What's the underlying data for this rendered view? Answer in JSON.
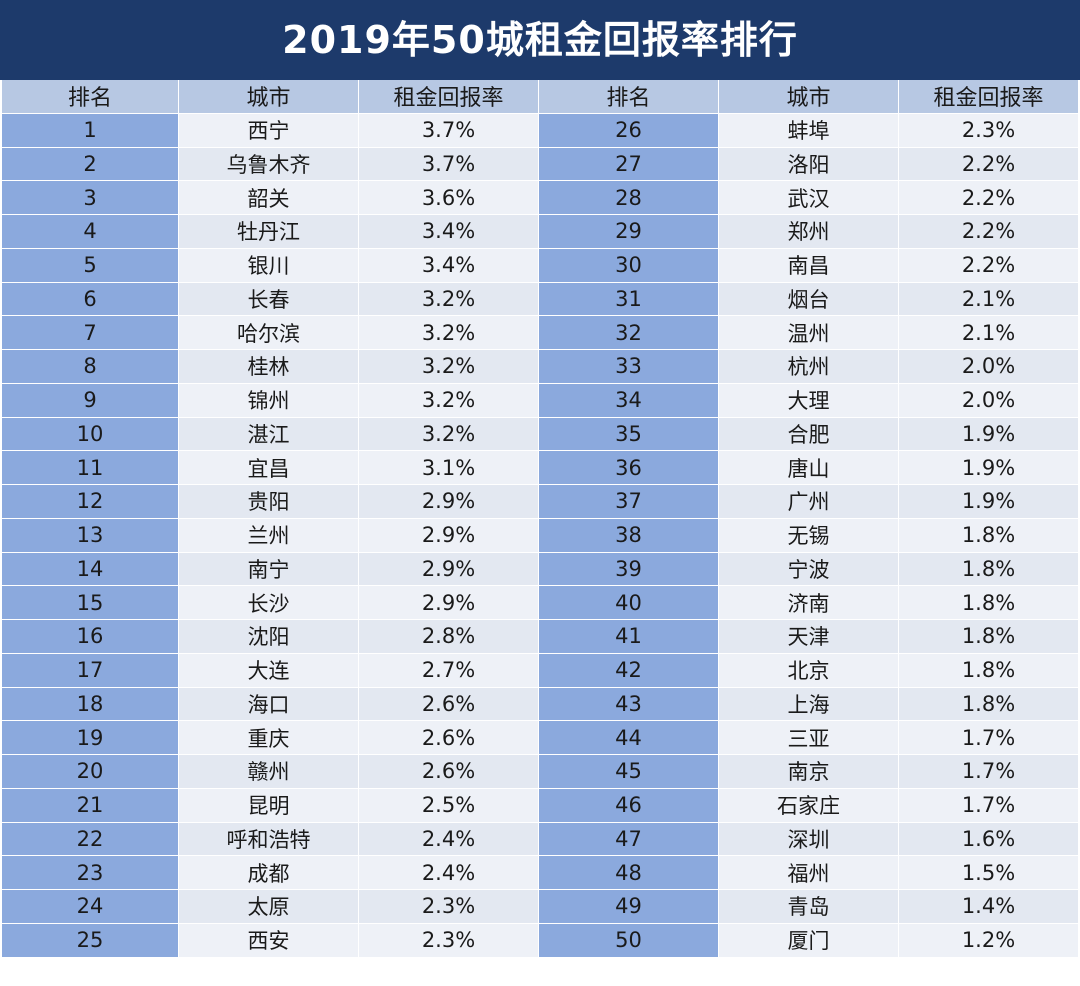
{
  "title": "2019年50城租金回报率排行",
  "headers": [
    "排名",
    "城市",
    "租金回报率",
    "排名",
    "城市",
    "租金回报率"
  ],
  "left_rows": [
    {
      "rank": "1",
      "city": "西宁",
      "rate": "3.7%"
    },
    {
      "rank": "2",
      "city": "乌鲁木齐",
      "rate": "3.7%"
    },
    {
      "rank": "3",
      "city": "韶关",
      "rate": "3.6%"
    },
    {
      "rank": "4",
      "city": "牡丹江",
      "rate": "3.4%"
    },
    {
      "rank": "5",
      "city": "银川",
      "rate": "3.4%"
    },
    {
      "rank": "6",
      "city": "长春",
      "rate": "3.2%"
    },
    {
      "rank": "7",
      "city": "哈尔滨",
      "rate": "3.2%"
    },
    {
      "rank": "8",
      "city": "桂林",
      "rate": "3.2%"
    },
    {
      "rank": "9",
      "city": "锦州",
      "rate": "3.2%"
    },
    {
      "rank": "10",
      "city": "湛江",
      "rate": "3.2%"
    },
    {
      "rank": "11",
      "city": "宜昌",
      "rate": "3.1%"
    },
    {
      "rank": "12",
      "city": "贵阳",
      "rate": "2.9%"
    },
    {
      "rank": "13",
      "city": "兰州",
      "rate": "2.9%"
    },
    {
      "rank": "14",
      "city": "南宁",
      "rate": "2.9%"
    },
    {
      "rank": "15",
      "city": "长沙",
      "rate": "2.9%"
    },
    {
      "rank": "16",
      "city": "沈阳",
      "rate": "2.8%"
    },
    {
      "rank": "17",
      "city": "大连",
      "rate": "2.7%"
    },
    {
      "rank": "18",
      "city": "海口",
      "rate": "2.6%"
    },
    {
      "rank": "19",
      "city": "重庆",
      "rate": "2.6%"
    },
    {
      "rank": "20",
      "city": "赣州",
      "rate": "2.6%"
    },
    {
      "rank": "21",
      "city": "昆明",
      "rate": "2.5%"
    },
    {
      "rank": "22",
      "city": "呼和浩特",
      "rate": "2.4%"
    },
    {
      "rank": "23",
      "city": "成都",
      "rate": "2.4%"
    },
    {
      "rank": "24",
      "city": "太原",
      "rate": "2.3%"
    },
    {
      "rank": "25",
      "city": "西安",
      "rate": "2.3%"
    }
  ],
  "right_rows": [
    {
      "rank": "26",
      "city": "蚌埠",
      "rate": "2.3%"
    },
    {
      "rank": "27",
      "city": "洛阳",
      "rate": "2.2%"
    },
    {
      "rank": "28",
      "city": "武汉",
      "rate": "2.2%"
    },
    {
      "rank": "29",
      "city": "郑州",
      "rate": "2.2%"
    },
    {
      "rank": "30",
      "city": "南昌",
      "rate": "2.2%"
    },
    {
      "rank": "31",
      "city": "烟台",
      "rate": "2.1%"
    },
    {
      "rank": "32",
      "city": "温州",
      "rate": "2.1%"
    },
    {
      "rank": "33",
      "city": "杭州",
      "rate": "2.0%"
    },
    {
      "rank": "34",
      "city": "大理",
      "rate": "2.0%"
    },
    {
      "rank": "35",
      "city": "合肥",
      "rate": "1.9%"
    },
    {
      "rank": "36",
      "city": "唐山",
      "rate": "1.9%"
    },
    {
      "rank": "37",
      "city": "广州",
      "rate": "1.9%"
    },
    {
      "rank": "38",
      "city": "无锡",
      "rate": "1.8%"
    },
    {
      "rank": "39",
      "city": "宁波",
      "rate": "1.8%"
    },
    {
      "rank": "40",
      "city": "济南",
      "rate": "1.8%"
    },
    {
      "rank": "41",
      "city": "天津",
      "rate": "1.8%"
    },
    {
      "rank": "42",
      "city": "北京",
      "rate": "1.8%"
    },
    {
      "rank": "43",
      "city": "上海",
      "rate": "1.8%"
    },
    {
      "rank": "44",
      "city": "三亚",
      "rate": "1.7%"
    },
    {
      "rank": "45",
      "city": "南京",
      "rate": "1.7%"
    },
    {
      "rank": "46",
      "city": "石家庄",
      "rate": "1.7%"
    },
    {
      "rank": "47",
      "city": "深圳",
      "rate": "1.6%"
    },
    {
      "rank": "48",
      "city": "福州",
      "rate": "1.5%"
    },
    {
      "rank": "49",
      "city": "青岛",
      "rate": "1.4%"
    },
    {
      "rank": "50",
      "city": "厦门",
      "rate": "1.2%"
    }
  ]
}
